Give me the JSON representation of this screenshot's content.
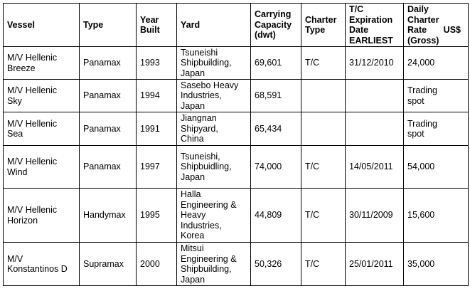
{
  "table": {
    "headers": {
      "vessel": "Vessel",
      "type": "Type",
      "year_built": "Year\nBuilt",
      "yard": "Yard",
      "capacity": "Carrying\nCapacity\n(dwt)",
      "charter_type": "Charter\nType",
      "expiration": "T/C\nExpiration\nDate\nEARLIEST",
      "rate_line1": "Daily\nCharter\nRate",
      "rate_unit": "US$",
      "rate_line3": "(Gross)"
    },
    "rows": [
      {
        "vessel": "M/V Hellenic\nBreeze",
        "type": "Panamax",
        "year": "1993",
        "yard": "Tsuneishi\nShipbuilding,\nJapan",
        "capacity": "69,601",
        "charter_type": "T/C",
        "expiration": "31/12/2010",
        "rate": "24,000"
      },
      {
        "vessel": "M/V Hellenic\nSky",
        "type": "Panamax",
        "year": "1994",
        "yard": "Sasebo Heavy\nIndustries,\nJapan",
        "capacity": "68,591",
        "charter_type": "",
        "expiration": "",
        "rate": "Trading\nspot"
      },
      {
        "vessel": "M/V Hellenic\nSea",
        "type": "Panamax",
        "year": "1991",
        "yard": "Jiangnan\nShipyard,\nChina",
        "capacity": "65,434",
        "charter_type": "",
        "expiration": "",
        "rate": "Trading\nspot"
      },
      {
        "vessel": "M/V Hellenic\nWind",
        "type": "Panamax",
        "year": "1997",
        "yard": "Tsuneishi,\nShipbuidling,\nJapan",
        "capacity": "74,000",
        "charter_type": "T/C",
        "expiration": "14/05/2011",
        "rate": "54,000"
      },
      {
        "vessel": "M/V Hellenic\nHorizon",
        "type": "Handymax",
        "year": "1995",
        "yard": "Halla\nEngineering &\nHeavy\nIndustries,\nKorea",
        "capacity": "44,809",
        "charter_type": "T/C",
        "expiration": "30/11/2009",
        "rate": "15,600"
      },
      {
        "vessel": "M/V\nKonstantinos D",
        "type": "Supramax",
        "year": "2000",
        "yard": "Mitsui\nEngineering &\nShipbuilding,\nJapan",
        "capacity": "50,326",
        "charter_type": "T/C",
        "expiration": "25/01/2011",
        "rate": "35,000"
      }
    ]
  }
}
